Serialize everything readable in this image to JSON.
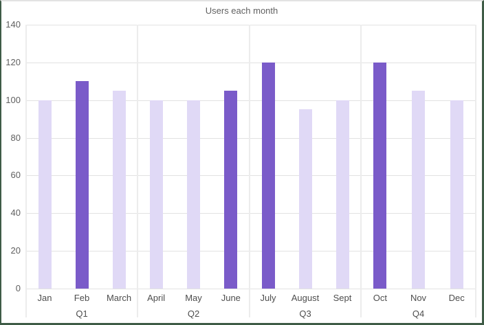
{
  "chart_data": {
    "type": "bar",
    "title": "Users each month",
    "categories": [
      "Jan",
      "Feb",
      "March",
      "April",
      "May",
      "June",
      "July",
      "August",
      "Sept",
      "Oct",
      "Nov",
      "Dec"
    ],
    "values": [
      100,
      110,
      105,
      100,
      100,
      105,
      120,
      95,
      100,
      120,
      105,
      100
    ],
    "emphasized": [
      false,
      true,
      false,
      false,
      false,
      true,
      true,
      false,
      false,
      true,
      false,
      false
    ],
    "group_labels": [
      "Q1",
      "Q2",
      "Q3",
      "Q4"
    ],
    "group_size": 3,
    "ylim": [
      0,
      140
    ],
    "ytick_step": 20,
    "grid": true,
    "legend": "none",
    "colors": {
      "bar_light": "#e0d9f6",
      "bar_dark": "#7a5bc9",
      "gridline": "#e2e2e2",
      "separator": "#ececec",
      "title_text": "#616161",
      "tick_text": "#5f5f5f",
      "label_text": "#4d4d4d",
      "border_green": "#3e5b46",
      "border_top": "#e2e2e2",
      "background": "#ffffff"
    }
  }
}
